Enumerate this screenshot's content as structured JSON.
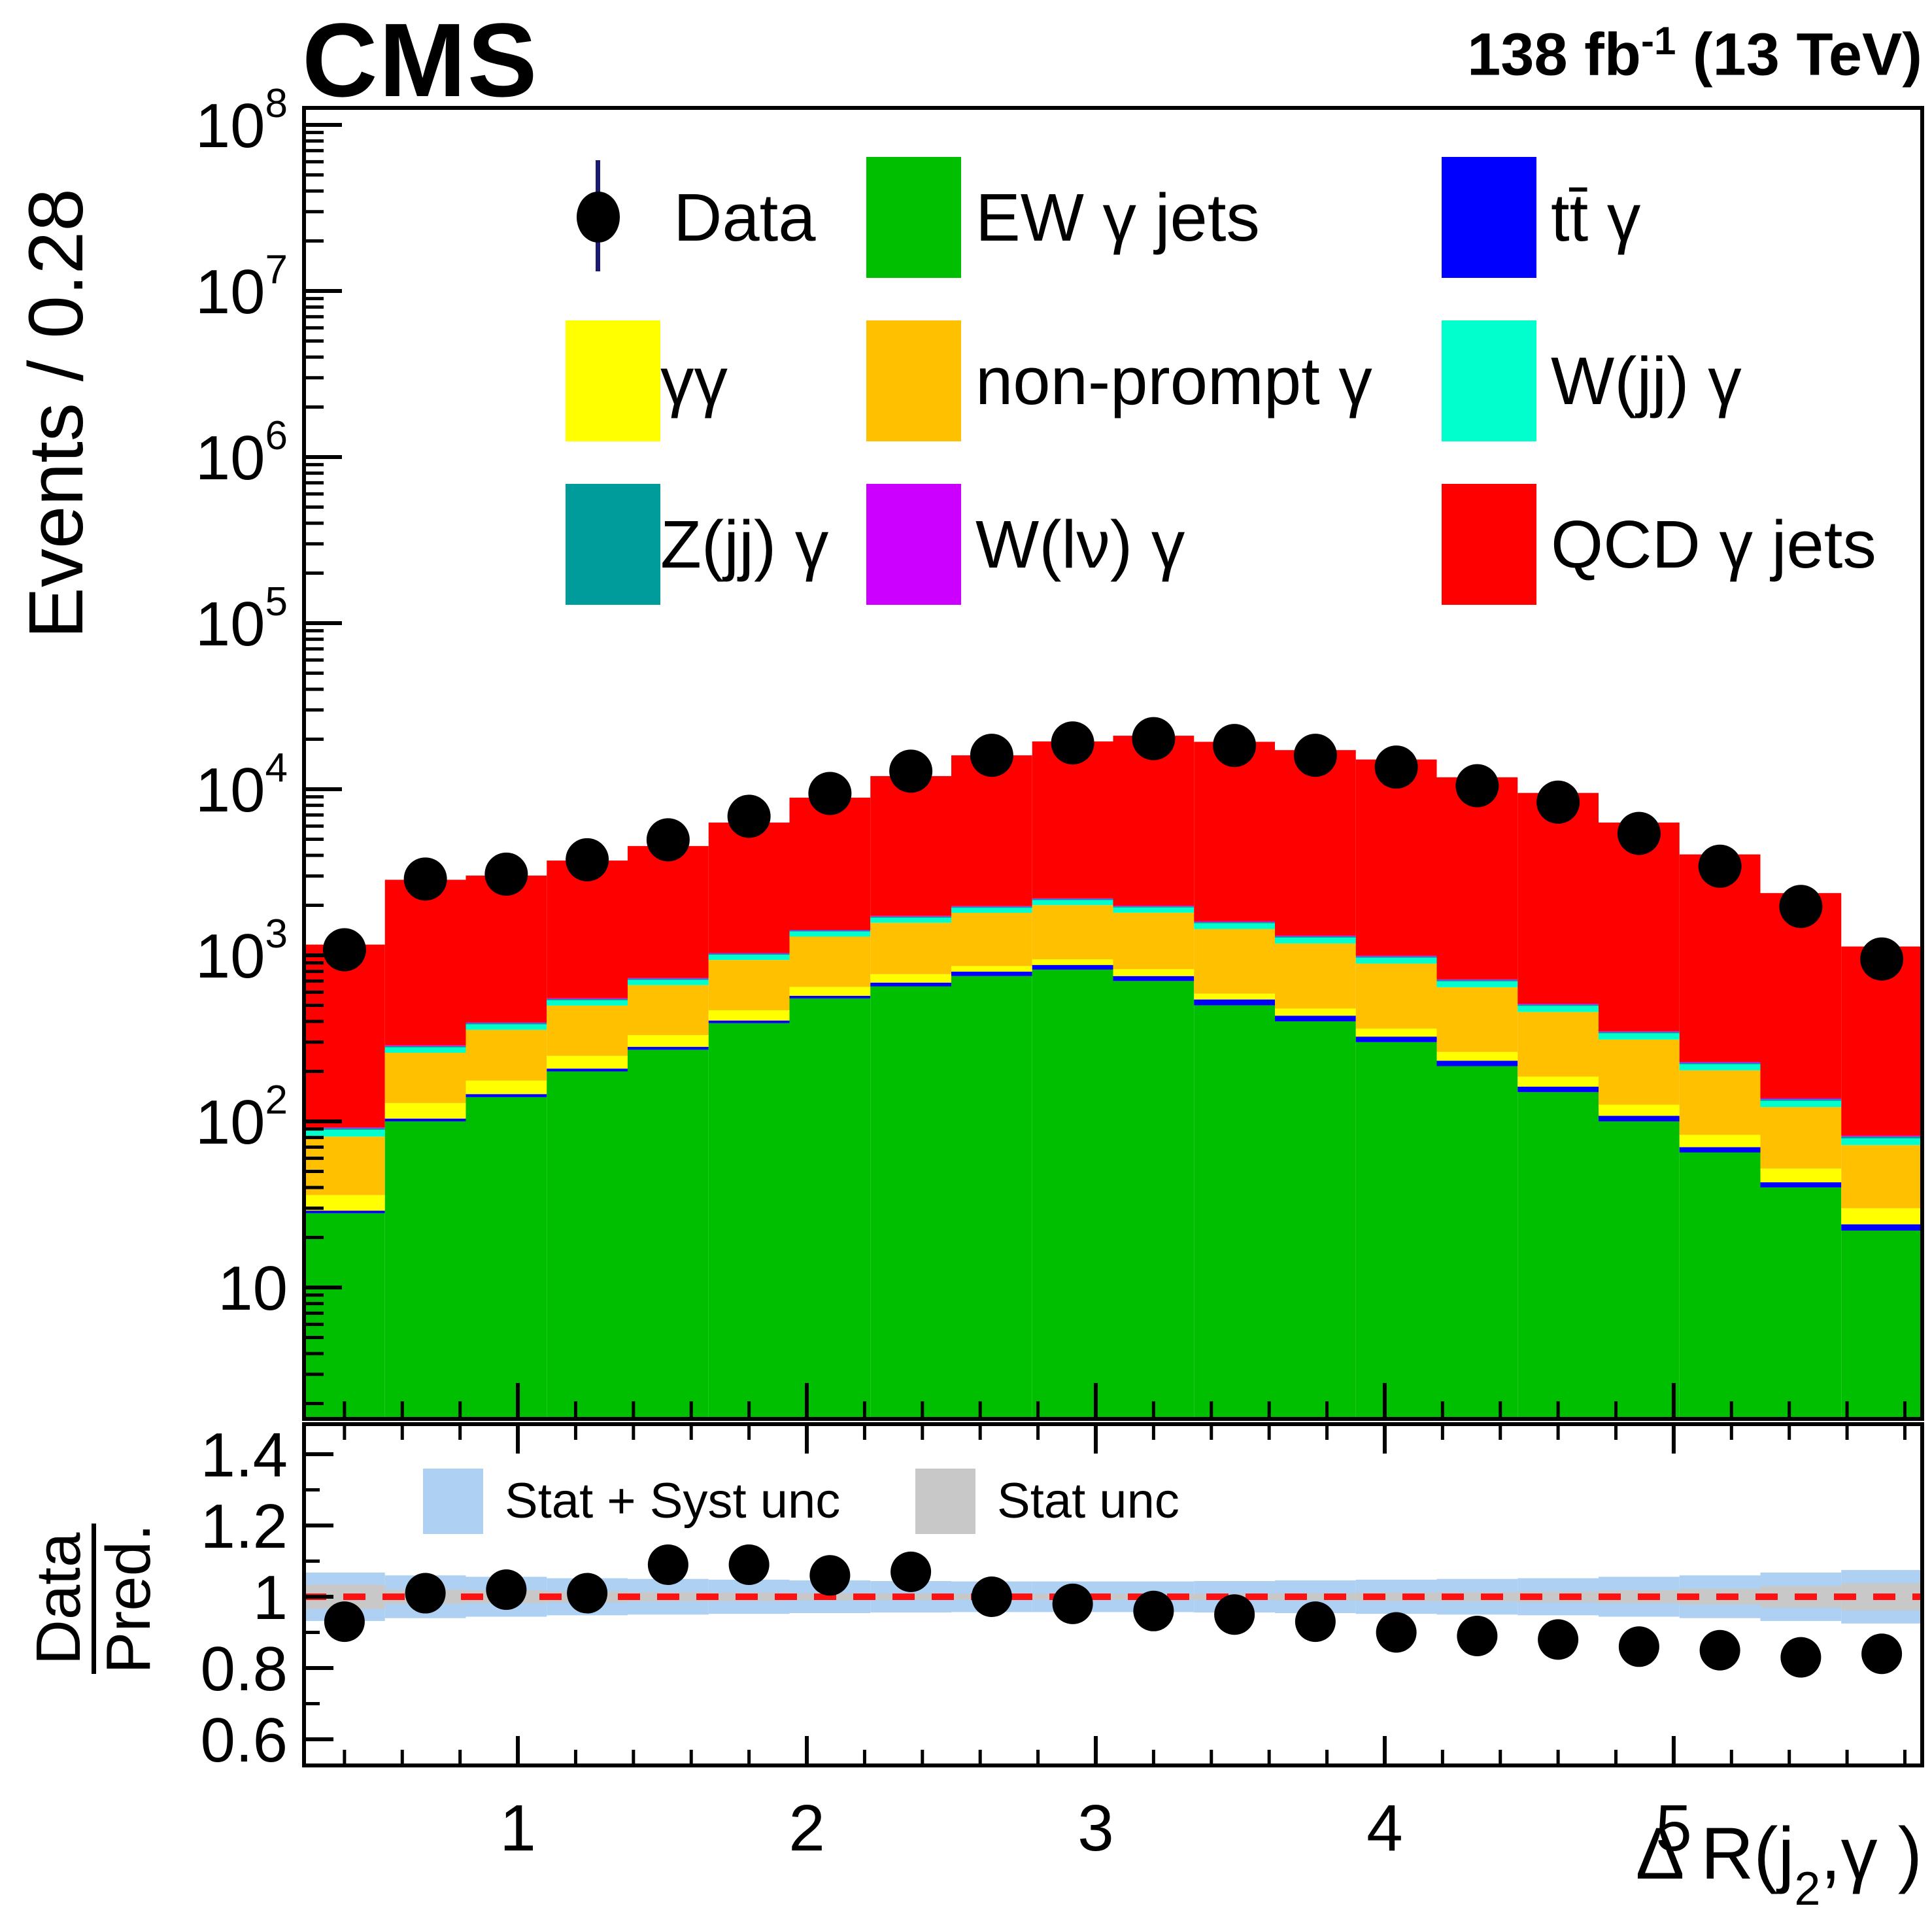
{
  "header": {
    "experiment": "CMS",
    "lumi": {
      "prefix": "138 fb",
      "sup": "-1",
      "suffix": " (13 TeV)"
    }
  },
  "y_axis": {
    "title": "Events / 0.28",
    "scale": "log",
    "min": 1.7,
    "max": 126000000.0,
    "decade_exponents": [
      1,
      2,
      3,
      4,
      5,
      6,
      7,
      8
    ]
  },
  "x_axis": {
    "title_parts": {
      "pre": "Δ R(j",
      "sub": "2",
      "post": ",γ )"
    },
    "min": 0.26,
    "max": 5.86,
    "major_ticks": [
      1,
      2,
      3,
      4,
      5
    ],
    "minor_step": 0.2
  },
  "ratio_axis": {
    "title_top": "Data",
    "title_bottom": "Pred.",
    "ticks": [
      0.6,
      0.8,
      1,
      1.2,
      1.4
    ],
    "min": 0.53,
    "max": 1.48
  },
  "legend": {
    "rows": [
      [
        {
          "label": "Data",
          "type": "marker",
          "color": "#000000"
        },
        {
          "label": "EW γ jets",
          "type": "box",
          "color": "#00bf00"
        },
        {
          "label": "tt̄ γ",
          "type": "box",
          "color": "#0000ff"
        }
      ],
      [
        {
          "label": "γγ",
          "type": "box",
          "color": "#ffff00"
        },
        {
          "label": "non-prompt γ",
          "type": "box",
          "color": "#ffc000"
        },
        {
          "label": "W(jj) γ",
          "type": "box",
          "color": "#00ffcc"
        }
      ],
      [
        {
          "label": "Z(jj) γ",
          "type": "box",
          "color": "#009c9c"
        },
        {
          "label": "W(lν) γ",
          "type": "box",
          "color": "#cc00ff"
        },
        {
          "label": "QCD γ jets",
          "type": "box",
          "color": "#ff0000"
        }
      ]
    ]
  },
  "ratio_legend": [
    {
      "label": "Stat + Syst unc",
      "color": "#aed0f2"
    },
    {
      "label": "Stat unc",
      "color": "#c8c8c8"
    }
  ],
  "chart_data": {
    "type": "stacked-histogram-with-ratio",
    "title": "CMS, 138 fb^-1 (13 TeV)",
    "xlabel": "Delta R(j2, gamma)",
    "ylabel": "Events / 0.28",
    "bin_width": 0.28,
    "x_range": [
      0.26,
      5.86
    ],
    "bin_centers": [
      0.4,
      0.68,
      0.96,
      1.24,
      1.52,
      1.8,
      2.08,
      2.36,
      2.64,
      2.92,
      3.2,
      3.48,
      3.76,
      4.04,
      4.32,
      4.6,
      4.88,
      5.16,
      5.44,
      5.72
    ],
    "series": [
      {
        "name": "EW γ jets",
        "color": "#00bf00",
        "values": [
          28,
          100,
          140,
          200,
          270,
          390,
          550,
          650,
          750,
          820,
          700,
          500,
          400,
          300,
          215,
          150,
          100,
          65,
          40,
          22
        ]
      },
      {
        "name": "tt̄ γ",
        "color": "#0000ff",
        "values": [
          1,
          4,
          6,
          8,
          11,
          15,
          20,
          35,
          48,
          55,
          50,
          42,
          33,
          24,
          17,
          12,
          8,
          5,
          3,
          2
        ]
      },
      {
        "name": "γγ",
        "color": "#ffff00",
        "values": [
          7,
          25,
          30,
          40,
          50,
          62,
          75,
          85,
          64,
          70,
          75,
          46,
          45,
          38,
          30,
          24,
          18,
          13,
          9,
          6
        ]
      },
      {
        "name": "non-prompt γ",
        "color": "#ffc000",
        "values": [
          45,
          130,
          180,
          250,
          330,
          470,
          650,
          800,
          940,
          1060,
          980,
          850,
          700,
          530,
          380,
          270,
          185,
          120,
          70,
          42
        ]
      },
      {
        "name": "W(jj) γ",
        "color": "#00ffcc",
        "values": [
          8,
          20,
          28,
          38,
          50,
          70,
          95,
          115,
          130,
          145,
          135,
          120,
          100,
          75,
          55,
          40,
          28,
          18,
          11,
          7
        ]
      },
      {
        "name": "Z(jj) γ",
        "color": "#009c9c",
        "values": [
          2,
          5,
          7,
          9,
          12,
          16,
          21,
          26,
          30,
          33,
          31,
          27,
          22,
          17,
          12,
          9,
          6,
          4,
          3,
          2
        ]
      },
      {
        "name": "W(lν) γ",
        "color": "#cc00ff",
        "values": [
          1,
          3,
          4,
          6,
          8,
          10,
          13,
          16,
          18,
          20,
          19,
          17,
          14,
          11,
          8,
          6,
          4,
          3,
          2,
          1
        ]
      },
      {
        "name": "QCD γ jets",
        "color": "#ff0000",
        "values": [
          1068,
          2563,
          2625,
          3169,
          3819,
          5267,
          7476,
          10273,
          14020,
          17197,
          19010,
          17698,
          15886,
          14105,
          11083,
          8989,
          5951,
          3822,
          2232,
          1048
        ]
      }
    ],
    "prediction_totals": [
      1160,
      2850,
      3020,
      3720,
      4550,
      6300,
      8900,
      12000,
      16000,
      19400,
      21000,
      19300,
      17200,
      15100,
      11800,
      9500,
      6300,
      4050,
      2370,
      1130
    ],
    "data_points": {
      "name": "Data",
      "color": "#000000",
      "values": [
        1080,
        2880,
        3080,
        3760,
        4960,
        6870,
        9430,
        12840,
        16000,
        19000,
        20160,
        18340,
        16000,
        13590,
        10500,
        8360,
        5420,
        3440,
        1970,
        950
      ]
    },
    "ratio": {
      "label": "Data/Pred.",
      "line": 1.0,
      "line_color": "#ff1111",
      "band_color": "#aed0f2",
      "stat_band_color": "#c8c8c8",
      "values": [
        0.93,
        1.01,
        1.02,
        1.01,
        1.09,
        1.09,
        1.06,
        1.07,
        1.0,
        0.98,
        0.96,
        0.95,
        0.93,
        0.9,
        0.89,
        0.88,
        0.86,
        0.85,
        0.83,
        0.84
      ],
      "stat_syst_halfwidth": [
        0.068,
        0.06,
        0.056,
        0.052,
        0.05,
        0.048,
        0.046,
        0.044,
        0.043,
        0.043,
        0.043,
        0.044,
        0.046,
        0.048,
        0.05,
        0.052,
        0.056,
        0.06,
        0.068,
        0.075
      ],
      "stat_halfwidth": [
        0.034,
        0.02,
        0.018,
        0.015,
        0.013,
        0.012,
        0.01,
        0.009,
        0.008,
        0.008,
        0.008,
        0.009,
        0.01,
        0.012,
        0.013,
        0.015,
        0.018,
        0.022,
        0.03,
        0.038
      ]
    }
  }
}
